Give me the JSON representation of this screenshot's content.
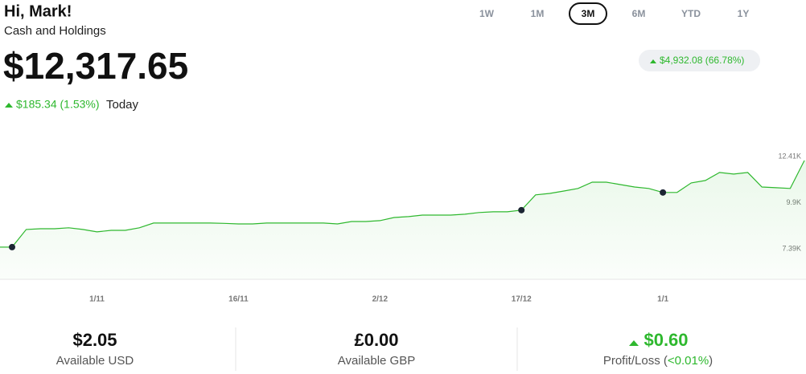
{
  "header": {
    "greeting": "Hi, Mark!",
    "subtitle": "Cash and Holdings",
    "balance": "$12,317.65",
    "today_change": "$185.34 (1.53%)",
    "today_label": "Today"
  },
  "periods": {
    "options": [
      "1W",
      "1M",
      "3M",
      "6M",
      "YTD",
      "1Y"
    ],
    "selected": "3M"
  },
  "period_change": "$4,932.08 (66.78%)",
  "chart_data": {
    "type": "line",
    "categories": [
      null,
      null,
      null,
      null,
      null,
      null,
      "1/11",
      null,
      null,
      null,
      null,
      null,
      null,
      null,
      null,
      null,
      "16/11",
      null,
      null,
      null,
      null,
      null,
      null,
      null,
      null,
      null,
      "2/12",
      null,
      null,
      null,
      null,
      null,
      null,
      null,
      null,
      null,
      "17/12",
      null,
      null,
      null,
      null,
      null,
      null,
      null,
      null,
      null,
      "1/1",
      null,
      null,
      null,
      null,
      null,
      null,
      null,
      null,
      null,
      null
    ],
    "values": [
      7.48,
      8.44,
      8.48,
      8.48,
      8.53,
      8.44,
      8.31,
      8.39,
      8.39,
      8.53,
      8.79,
      8.79,
      8.79,
      8.79,
      8.79,
      8.77,
      8.74,
      8.74,
      8.79,
      8.79,
      8.79,
      8.79,
      8.79,
      8.74,
      8.87,
      8.87,
      8.92,
      9.09,
      9.14,
      9.22,
      9.22,
      9.22,
      9.27,
      9.36,
      9.4,
      9.4,
      9.49,
      10.32,
      10.4,
      10.53,
      10.67,
      11.01,
      11.01,
      10.88,
      10.75,
      10.67,
      10.45,
      10.45,
      10.97,
      11.1,
      11.54,
      11.45,
      11.54,
      10.75,
      10.71,
      10.67,
      12.19
    ],
    "color": "#2eb82e",
    "markers": [
      0,
      36,
      46
    ],
    "ylim": [
      5.73,
      14.37
    ],
    "yticks": [
      {
        "value": 7.39,
        "label": "7.39K"
      },
      {
        "value": 9.9,
        "label": "9.9K"
      },
      {
        "value": 12.41,
        "label": "12.41K"
      }
    ]
  },
  "stats": [
    {
      "value": "$2.05",
      "label": "Available USD"
    },
    {
      "value": "£0.00",
      "label": "Available GBP"
    },
    {
      "value": "$0.60",
      "label": "Profit/Loss (",
      "pct": "<0.01%",
      "close": ")"
    }
  ]
}
